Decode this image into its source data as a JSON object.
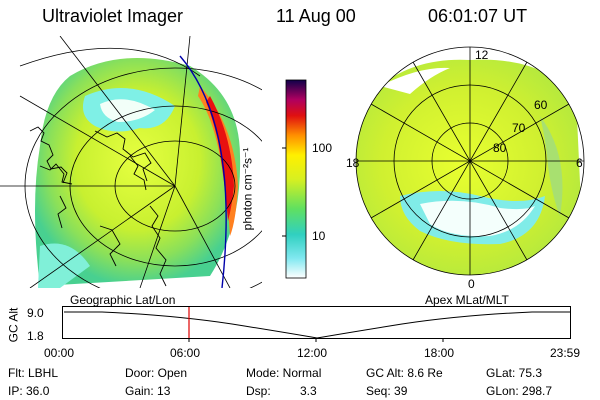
{
  "header": {
    "title": "Ultraviolet Imager",
    "date": "11 Aug 00",
    "time": "06:01:07 UT"
  },
  "colorbar": {
    "unit_label": "photon cm⁻²s⁻¹",
    "ticks": [
      "100",
      "10"
    ],
    "scale": "log"
  },
  "left_panel": {
    "label": "Geographic Lat/Lon",
    "view": "auroral oval over geographic map"
  },
  "right_panel": {
    "label": "Apex MLat/MLT",
    "mlt_labels": [
      "12",
      "18",
      "6",
      "0"
    ],
    "lat_labels": [
      "60",
      "70",
      "80"
    ]
  },
  "timeline": {
    "axis_label": "GC Alt",
    "y_ticks": [
      "9.0",
      "1.8"
    ],
    "x_ticks": [
      "00:00",
      "06:00",
      "12:00",
      "18:00",
      "23:59"
    ],
    "marker_time": "06:00"
  },
  "info": {
    "filter": "Flt: LBHL",
    "ip": "IP: 36.0",
    "door": "Door: Open",
    "gain": "Gain: 13",
    "mode": "Mode: Normal",
    "dsp_label": "Dsp:",
    "dsp_value": "3.3",
    "gc_alt": "GC Alt: 8.6 Re",
    "seq": "Seq: 39",
    "glat": "GLat: 75.3",
    "glon": "GLon: 298.7"
  }
}
